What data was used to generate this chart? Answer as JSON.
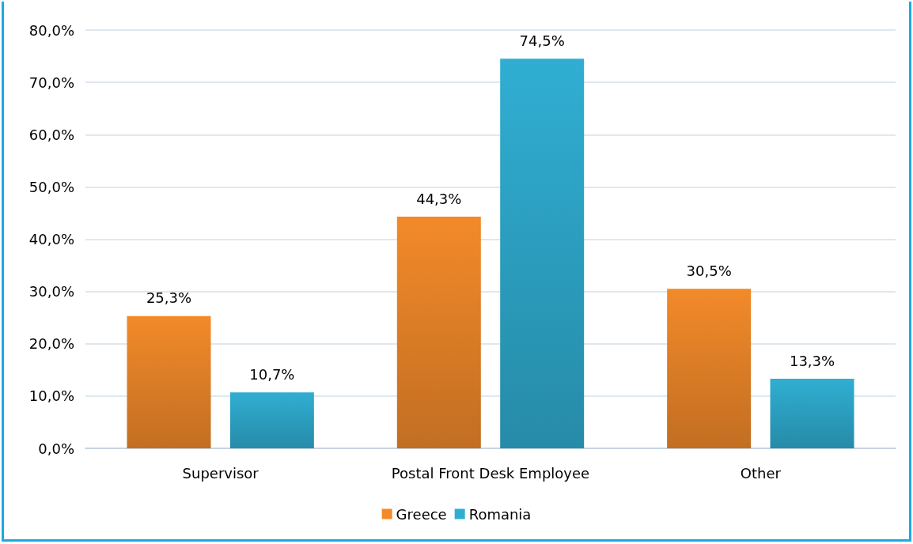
{
  "chart_data": {
    "type": "bar",
    "categories": [
      "Supervisor",
      "Postal Front Desk Employee",
      "Other"
    ],
    "series": [
      {
        "name": "Greece",
        "color": "#f28a2a",
        "values": [
          25.3,
          44.3,
          30.5
        ],
        "value_labels": [
          "25,3%",
          "44,3%",
          "30,5%"
        ]
      },
      {
        "name": "Romania",
        "color": "#30aed2",
        "values": [
          10.7,
          74.5,
          13.3
        ],
        "value_labels": [
          "10,7%",
          "74,5%",
          "13,3%"
        ]
      }
    ],
    "ylim": [
      0,
      80
    ],
    "yticks": [
      {
        "value": 0,
        "label": "0,0%"
      },
      {
        "value": 10,
        "label": "10,0%"
      },
      {
        "value": 20,
        "label": "20,0%"
      },
      {
        "value": 30,
        "label": "30,0%"
      },
      {
        "value": 40,
        "label": "40,0%"
      },
      {
        "value": 50,
        "label": "50,0%"
      },
      {
        "value": 60,
        "label": "60,0%"
      },
      {
        "value": 70,
        "label": "70,0%"
      },
      {
        "value": 80,
        "label": "80,0%"
      }
    ],
    "grid": "y",
    "legend": "bottom"
  }
}
